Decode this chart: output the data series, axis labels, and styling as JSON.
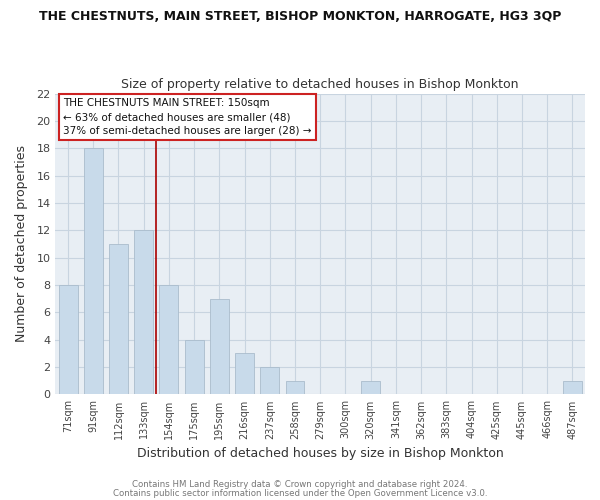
{
  "title": "THE CHESTNUTS, MAIN STREET, BISHOP MONKTON, HARROGATE, HG3 3QP",
  "subtitle": "Size of property relative to detached houses in Bishop Monkton",
  "xlabel": "Distribution of detached houses by size in Bishop Monkton",
  "ylabel": "Number of detached properties",
  "bar_color": "#c8daea",
  "bar_edge_color": "#aabccc",
  "categories": [
    "71sqm",
    "91sqm",
    "112sqm",
    "133sqm",
    "154sqm",
    "175sqm",
    "195sqm",
    "216sqm",
    "237sqm",
    "258sqm",
    "279sqm",
    "300sqm",
    "320sqm",
    "341sqm",
    "362sqm",
    "383sqm",
    "404sqm",
    "425sqm",
    "445sqm",
    "466sqm",
    "487sqm"
  ],
  "values": [
    8,
    18,
    11,
    12,
    8,
    4,
    7,
    3,
    2,
    1,
    0,
    0,
    1,
    0,
    0,
    0,
    0,
    0,
    0,
    0,
    1
  ],
  "ylim": [
    0,
    22
  ],
  "yticks": [
    0,
    2,
    4,
    6,
    8,
    10,
    12,
    14,
    16,
    18,
    20,
    22
  ],
  "vline_color": "#aa0000",
  "annotation_title": "THE CHESTNUTS MAIN STREET: 150sqm",
  "annotation_line1": "← 63% of detached houses are smaller (48)",
  "annotation_line2": "37% of semi-detached houses are larger (28) →",
  "annotation_box_color": "#ffffff",
  "annotation_box_edge": "#cc2222",
  "grid_color": "#c8d4e0",
  "plot_bg_color": "#e8eef4",
  "figure_bg_color": "#ffffff",
  "title_color": "#111111",
  "subtitle_color": "#333333",
  "tick_color": "#444444",
  "footer1": "Contains HM Land Registry data © Crown copyright and database right 2024.",
  "footer2": "Contains public sector information licensed under the Open Government Licence v3.0.",
  "footer_color": "#777777"
}
